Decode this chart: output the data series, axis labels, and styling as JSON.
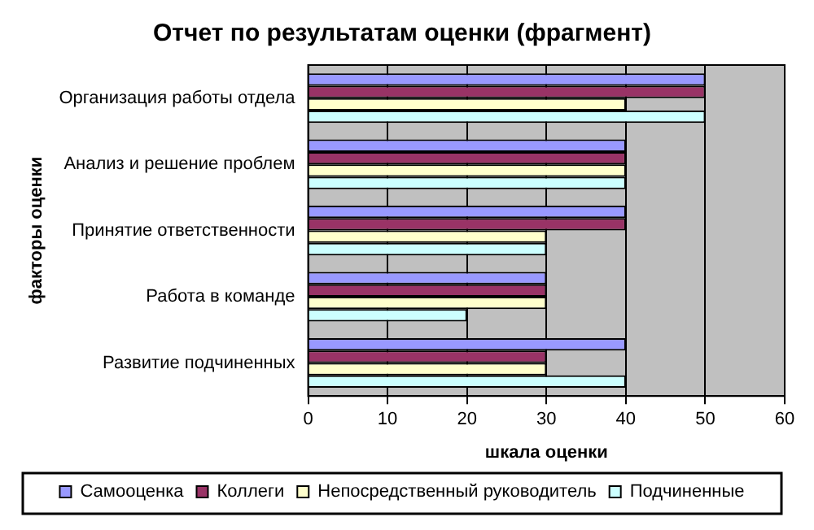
{
  "chart_data": {
    "type": "bar",
    "orientation": "horizontal",
    "title": "Отчет по результатам оценки (фрагмент)",
    "xlabel": "шкала оценки",
    "ylabel": "факторы оценки",
    "categories": [
      "Организация работы отдела",
      "Анализ и решение проблем",
      "Принятие ответственности",
      "Работа в команде",
      "Развитие подчиненных"
    ],
    "series": [
      {
        "name": "Самооценка",
        "color": "#9999ff",
        "values": [
          50,
          40,
          40,
          30,
          40
        ]
      },
      {
        "name": "Коллеги",
        "color": "#993366",
        "values": [
          50,
          40,
          40,
          30,
          30
        ]
      },
      {
        "name": "Непосредственный руководитель",
        "color": "#ffffcc",
        "values": [
          40,
          40,
          30,
          30,
          30
        ]
      },
      {
        "name": "Подчиненные",
        "color": "#ccffff",
        "values": [
          50,
          40,
          30,
          20,
          40
        ]
      }
    ],
    "xlim": [
      0,
      60
    ],
    "xticks": [
      0,
      10,
      20,
      30,
      40,
      50,
      60
    ],
    "grid": "x",
    "legend": "bottom"
  }
}
